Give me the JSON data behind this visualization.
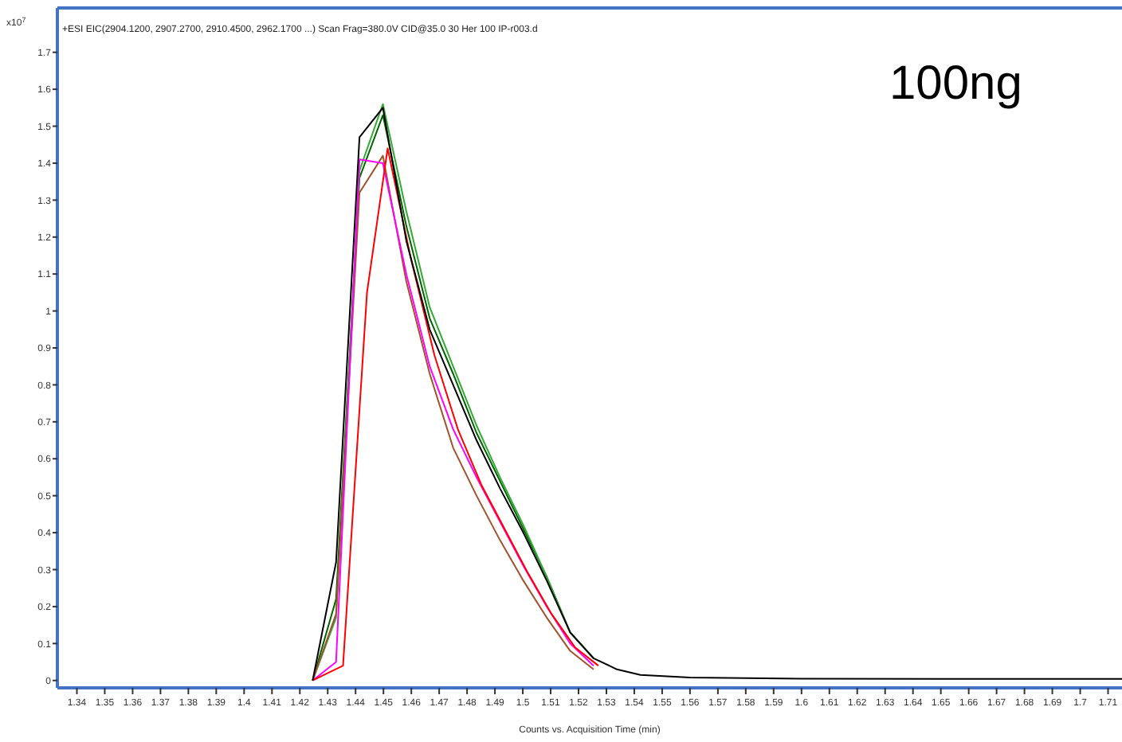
{
  "chart_data": {
    "type": "line",
    "title": "+ESI EIC(2904.1200, 2907.2700, 2910.4500, 2962.1700 ...) Scan Frag=380.0V CID@35.0 30 Her 100 IP-r003.d",
    "xlabel": "Counts vs. Acquisition Time (min)",
    "ylabel": "x10$^{7}$",
    "annotations": [
      "100ng"
    ],
    "x": [
      1.4246,
      1.433,
      1.4414,
      1.4498,
      1.4582,
      1.4666,
      1.475,
      1.4834,
      1.4918,
      1.5002,
      1.5086,
      1.517,
      1.5254,
      1.5338,
      1.5422,
      1.56,
      1.6,
      1.65,
      1.715
    ],
    "series": [
      {
        "color": "#006400",
        "values": [
          0,
          0.22,
          1.36,
          1.53,
          1.23,
          0.98,
          0.83,
          0.67,
          0.54,
          0.41,
          0.28,
          0.13,
          0.06,
          null,
          null,
          null,
          null,
          null,
          null
        ]
      },
      {
        "color": "#33aa33",
        "values": [
          0,
          0.17,
          1.38,
          1.56,
          1.27,
          1.01,
          0.85,
          0.69,
          0.55,
          0.42,
          0.28,
          0.13,
          0.06,
          null,
          null,
          null,
          null,
          null,
          null
        ]
      },
      {
        "color": "#a0522d",
        "values": [
          0,
          0.18,
          1.32,
          1.42,
          1.08,
          0.83,
          0.63,
          0.5,
          0.38,
          0.27,
          0.17,
          0.08,
          0.03,
          null,
          null,
          null,
          null,
          null,
          null
        ]
      },
      {
        "color": "#ff00ff",
        "values": [
          0,
          0.05,
          1.41,
          1.4,
          1.1,
          0.85,
          0.68,
          0.55,
          0.43,
          0.31,
          0.2,
          0.1,
          0.04,
          null,
          null,
          null,
          null,
          null,
          null
        ]
      },
      {
        "color": "#ff0000",
        "x": [
          1.4246,
          1.4355,
          1.4441,
          1.4515,
          1.4599,
          1.4683,
          1.4767,
          1.4851,
          1.4935,
          1.5019,
          1.5103,
          1.5187,
          1.5271
        ],
        "values": [
          0,
          0.04,
          1.05,
          1.44,
          1.14,
          0.88,
          0.68,
          0.53,
          0.41,
          0.29,
          0.18,
          0.09,
          0.04
        ]
      },
      {
        "color": "#000000",
        "values": [
          0,
          0.32,
          1.47,
          1.55,
          1.19,
          0.95,
          0.8,
          0.65,
          0.52,
          0.4,
          0.27,
          0.13,
          0.06,
          0.03,
          0.015,
          0.008,
          0.005,
          0.004,
          0.004
        ]
      }
    ],
    "xlim": [
      1.333,
      1.715
    ],
    "ylim": [
      -0.02,
      1.82
    ],
    "xticks": [
      1.34,
      1.35,
      1.36,
      1.37,
      1.38,
      1.39,
      1.4,
      1.41,
      1.42,
      1.43,
      1.44,
      1.45,
      1.46,
      1.47,
      1.48,
      1.49,
      1.5,
      1.51,
      1.52,
      1.53,
      1.54,
      1.55,
      1.56,
      1.57,
      1.58,
      1.59,
      1.6,
      1.61,
      1.62,
      1.63,
      1.64,
      1.65,
      1.66,
      1.67,
      1.68,
      1.69,
      1.7,
      1.71
    ],
    "yticks": [
      0,
      0.1,
      0.2,
      0.3,
      0.4,
      0.5,
      0.6,
      0.7,
      0.8,
      0.9,
      1,
      1.1,
      1.2,
      1.3,
      1.4,
      1.5,
      1.6,
      1.7
    ],
    "grid": false,
    "marker": "none",
    "line_style": "solid"
  }
}
